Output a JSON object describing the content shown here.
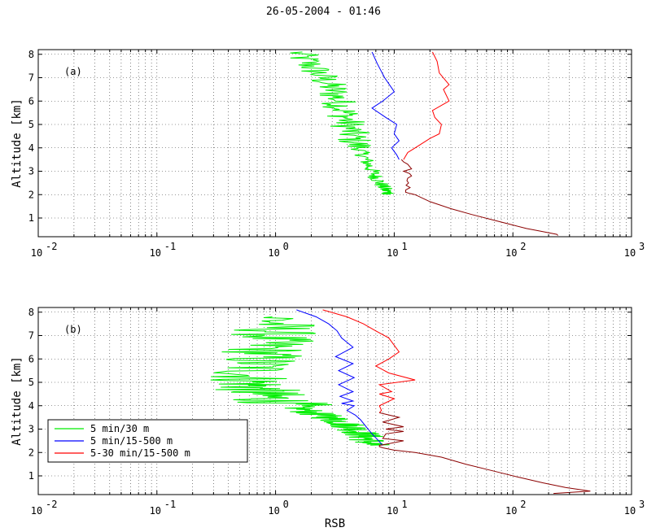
{
  "title": "26-05-2004 - 01:46",
  "chart_data": [
    {
      "type": "line",
      "panel_label": "(a)",
      "xlabel": "",
      "ylabel": "Altitude [km]",
      "xscale": "log",
      "xlim": [
        0.01,
        1000
      ],
      "ylim": [
        0.2,
        8.2
      ],
      "xticks": [
        {
          "base": "10",
          "exp": "-2"
        },
        {
          "base": "10",
          "exp": "-1"
        },
        {
          "base": "10",
          "exp": "0"
        },
        {
          "base": "10",
          "exp": "1"
        },
        {
          "base": "10",
          "exp": "2"
        },
        {
          "base": "10",
          "exp": "3"
        }
      ],
      "yticks": [
        "1",
        "2",
        "3",
        "4",
        "5",
        "6",
        "7",
        "8"
      ],
      "grid": true,
      "series": [
        {
          "color": "#00ee00",
          "kind": "green",
          "x": [
            1.5,
            2,
            2.5,
            3,
            3.4,
            3.8,
            4.1,
            4.4,
            5,
            5.6,
            6.2,
            6.9,
            7.6,
            8.4,
            9.3
          ],
          "y": [
            8.1,
            7.5,
            7.0,
            6.5,
            6.0,
            5.5,
            5.0,
            4.5,
            4.0,
            3.6,
            3.2,
            2.8,
            2.5,
            2.2,
            2.0
          ]
        },
        {
          "color": "#0000ff",
          "x": [
            6.5,
            7.2,
            8.3,
            10,
            8,
            6.5,
            8.5,
            10.5,
            10,
            11,
            9.5,
            10.5,
            11
          ],
          "y": [
            8.1,
            7.6,
            7.0,
            6.4,
            6.0,
            5.7,
            5.3,
            5.0,
            4.6,
            4.3,
            4.0,
            3.7,
            3.5
          ]
        },
        {
          "color": "#ff0000",
          "x": [
            21,
            23,
            24,
            29,
            26,
            29,
            21,
            22,
            25,
            24,
            20,
            15,
            13,
            12
          ],
          "y": [
            8.1,
            7.7,
            7.2,
            6.7,
            6.5,
            6.0,
            5.6,
            5.3,
            5.0,
            4.6,
            4.4,
            4.0,
            3.8,
            3.5
          ]
        },
        {
          "color": "#8b0000",
          "x": [
            11.5,
            12,
            13,
            14,
            12,
            13.5,
            14,
            13,
            12.8,
            13.2,
            12.6,
            13.6,
            12.5,
            12.5,
            13.5,
            15,
            20,
            30,
            45,
            70,
            100,
            130,
            165,
            200,
            235,
            240
          ],
          "y": [
            3.5,
            3.4,
            3.3,
            3.1,
            3.0,
            2.9,
            2.8,
            2.7,
            2.6,
            2.5,
            2.4,
            2.3,
            2.2,
            2.1,
            2.05,
            2.0,
            1.7,
            1.4,
            1.15,
            0.9,
            0.7,
            0.55,
            0.45,
            0.37,
            0.3,
            0.25
          ]
        }
      ]
    },
    {
      "type": "line",
      "panel_label": "(b)",
      "xlabel": "RSB",
      "ylabel": "Altitude [km]",
      "xscale": "log",
      "xlim": [
        0.01,
        1000
      ],
      "ylim": [
        0.2,
        8.2
      ],
      "xticks": [
        {
          "base": "10",
          "exp": "-2"
        },
        {
          "base": "10",
          "exp": "-1"
        },
        {
          "base": "10",
          "exp": "0"
        },
        {
          "base": "10",
          "exp": "1"
        },
        {
          "base": "10",
          "exp": "2"
        },
        {
          "base": "10",
          "exp": "3"
        }
      ],
      "yticks": [
        "1",
        "2",
        "3",
        "4",
        "5",
        "6",
        "7",
        "8"
      ],
      "grid": true,
      "legend": {
        "placement": "lower-left",
        "entries": [
          {
            "label": "5 min/30 m",
            "color": "#00ee00"
          },
          {
            "label": "5 min/15-500 m",
            "color": "#0000ff"
          },
          {
            "label": "5-30 min/15-500 m",
            "color": "#ff0000"
          }
        ]
      },
      "series": [
        {
          "color": "#00ee00",
          "kind": "green",
          "x": [
            1.0,
            1.0,
            0.9,
            0.8,
            0.7,
            0.6,
            0.65,
            0.7,
            0.9,
            1.4,
            2.0,
            2.8,
            3.6,
            4.3,
            5.0,
            5.6,
            6.1,
            6.4
          ],
          "y": [
            7.8,
            7.3,
            6.8,
            6.3,
            5.8,
            5.3,
            4.9,
            4.6,
            4.3,
            4.0,
            3.7,
            3.5,
            3.3,
            3.1,
            2.9,
            2.7,
            2.5,
            2.3
          ]
        },
        {
          "color": "#0000ff",
          "x": [
            1.5,
            2.2,
            2.8,
            3.3,
            3.6,
            4.5,
            3.2,
            4.5,
            3.4,
            4.6,
            3.4,
            4.5,
            3.5,
            4.5,
            3.6,
            4.6,
            4.0,
            4.7,
            5.2,
            5.8,
            6.5,
            7.4,
            8.0
          ],
          "y": [
            8.1,
            7.8,
            7.5,
            7.2,
            6.9,
            6.5,
            6.1,
            5.8,
            5.5,
            5.2,
            4.9,
            4.6,
            4.4,
            4.2,
            4.1,
            4.0,
            3.8,
            3.6,
            3.4,
            3.1,
            2.8,
            2.5,
            2.3
          ]
        },
        {
          "color": "#ff0000",
          "x": [
            2.5,
            4,
            5.5,
            7,
            9,
            11,
            9,
            7,
            9,
            15,
            7.5,
            9.5,
            7.5,
            10,
            7.5,
            7.8,
            7.5
          ],
          "y": [
            8.1,
            7.8,
            7.5,
            7.2,
            6.9,
            6.3,
            6.0,
            5.7,
            5.4,
            5.1,
            4.9,
            4.6,
            4.5,
            4.3,
            4.0,
            3.8,
            3.7
          ]
        },
        {
          "color": "#8b0000",
          "x": [
            7.5,
            11,
            8,
            12,
            8.5,
            12,
            8.5,
            8,
            12,
            9.5,
            7.5,
            7.5,
            8,
            10,
            15,
            25,
            40,
            70,
            110,
            180,
            280,
            450,
            220
          ],
          "y": [
            3.7,
            3.5,
            3.3,
            3.1,
            3.0,
            2.9,
            2.8,
            2.6,
            2.5,
            2.4,
            2.3,
            2.25,
            2.2,
            2.1,
            2.0,
            1.8,
            1.5,
            1.2,
            0.95,
            0.7,
            0.5,
            0.35,
            0.25
          ]
        }
      ]
    }
  ]
}
